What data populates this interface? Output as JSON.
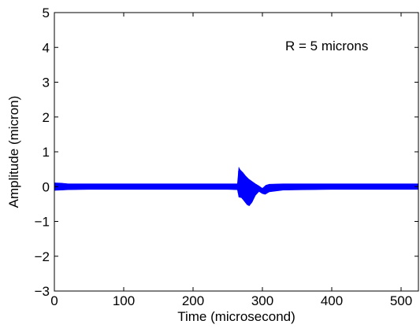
{
  "chart_data": {
    "type": "line",
    "title": "",
    "xlabel": "Time (microsecond)",
    "ylabel": "Amplitude (micron)",
    "xlim": [
      0,
      525
    ],
    "ylim": [
      -3,
      5
    ],
    "xticks": [
      0,
      100,
      200,
      300,
      400,
      500
    ],
    "yticks": [
      -3,
      -2,
      -1,
      0,
      1,
      2,
      3,
      4,
      5
    ],
    "xtick_labels": [
      "0",
      "100",
      "200",
      "300",
      "400",
      "500"
    ],
    "ytick_labels": [
      "−3",
      "−2",
      "−1",
      "0",
      "1",
      "2",
      "3",
      "4",
      "5"
    ],
    "grid": false,
    "annotation": "R = 5 microns",
    "series": [
      {
        "color": "#0000ff",
        "envelope_upper": [
          [
            0,
            0.11
          ],
          [
            10,
            0.1
          ],
          [
            20,
            0.08
          ],
          [
            50,
            0.08
          ],
          [
            100,
            0.08
          ],
          [
            150,
            0.08
          ],
          [
            200,
            0.08
          ],
          [
            250,
            0.08
          ],
          [
            264,
            0.08
          ],
          [
            266,
            0.55
          ],
          [
            268,
            0.48
          ],
          [
            272,
            0.4
          ],
          [
            276,
            0.3
          ],
          [
            280,
            0.22
          ],
          [
            285,
            0.15
          ],
          [
            290,
            0.08
          ],
          [
            295,
            0.02
          ],
          [
            300,
            -0.05
          ],
          [
            305,
            0.04
          ],
          [
            310,
            0.07
          ],
          [
            330,
            0.08
          ],
          [
            400,
            0.08
          ],
          [
            450,
            0.08
          ],
          [
            525,
            0.08
          ]
        ],
        "envelope_lower": [
          [
            0,
            -0.11
          ],
          [
            10,
            -0.1
          ],
          [
            20,
            -0.09
          ],
          [
            50,
            -0.08
          ],
          [
            100,
            -0.08
          ],
          [
            150,
            -0.08
          ],
          [
            200,
            -0.08
          ],
          [
            250,
            -0.08
          ],
          [
            264,
            -0.09
          ],
          [
            266,
            -0.3
          ],
          [
            270,
            -0.32
          ],
          [
            274,
            -0.42
          ],
          [
            278,
            -0.52
          ],
          [
            281,
            -0.55
          ],
          [
            285,
            -0.45
          ],
          [
            290,
            -0.25
          ],
          [
            295,
            -0.14
          ],
          [
            300,
            -0.2
          ],
          [
            304,
            -0.22
          ],
          [
            310,
            -0.15
          ],
          [
            330,
            -0.1
          ],
          [
            400,
            -0.08
          ],
          [
            450,
            -0.08
          ],
          [
            525,
            -0.08
          ]
        ]
      }
    ]
  }
}
